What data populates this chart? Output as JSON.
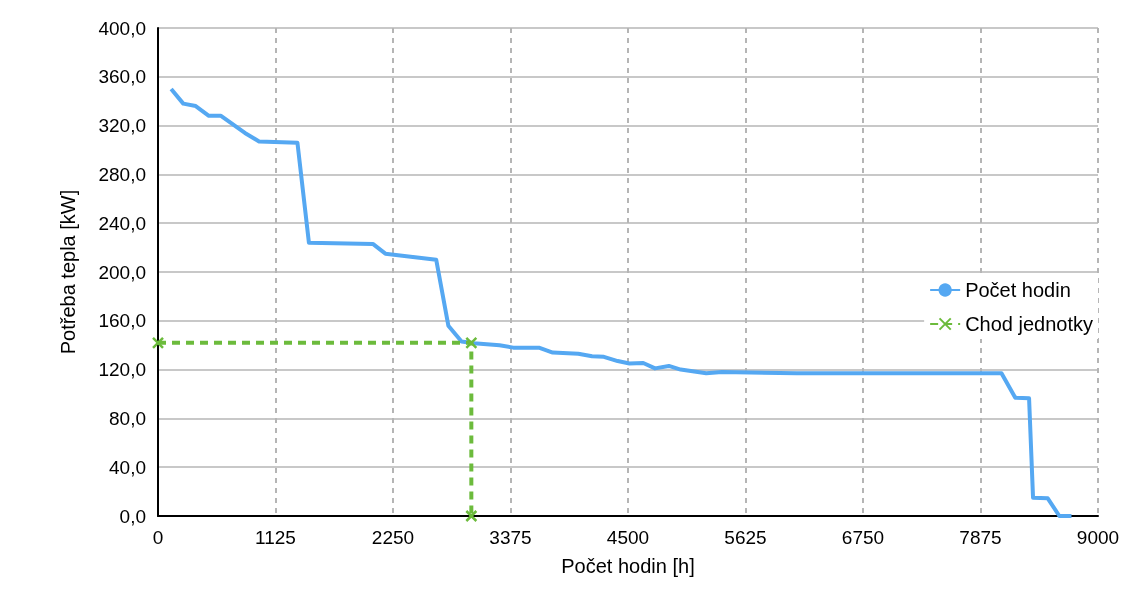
{
  "chart_data": {
    "type": "line",
    "xlabel": "Počet hodin [h]",
    "ylabel": "Potřeba tepla [kW]",
    "series": [
      {
        "name": "Počet hodin",
        "color": "#55a8f2",
        "marker": "none",
        "line_style": "solid",
        "x": [
          126,
          242,
          361,
          487,
          603,
          832,
          968,
          1335,
          1445,
          2057,
          2177,
          2664,
          2780,
          2906,
          3025,
          3270,
          3402,
          3647,
          3779,
          4024,
          4156,
          4269,
          4401,
          4514,
          4646,
          4759,
          4891,
          5004,
          5249,
          5400,
          6116,
          8076,
          8208,
          8340,
          8378,
          8519,
          8630,
          8746
        ],
        "values": [
          350,
          338,
          336,
          328,
          328,
          314,
          307,
          306,
          224,
          223,
          215,
          210,
          156,
          143,
          141.6,
          140,
          138,
          138,
          134,
          133,
          131,
          130.5,
          127,
          125,
          125.4,
          121,
          123,
          120,
          117,
          118,
          117,
          117,
          97,
          96.5,
          15,
          14.5,
          0,
          0
        ]
      },
      {
        "name": "Chod jednotky",
        "color": "#6cbb3c",
        "marker": "cross",
        "line_style": "dashed",
        "x": [
          0,
          3000,
          3000
        ],
        "values": [
          142,
          142,
          0
        ]
      }
    ],
    "xlim": [
      0,
      9000
    ],
    "xticks": [
      0,
      1125,
      2250,
      3375,
      4500,
      5625,
      6750,
      7875,
      9000
    ],
    "ylim": [
      0,
      400
    ],
    "yticks": [
      {
        "value": 0,
        "label": "0,0"
      },
      {
        "value": 40,
        "label": "40,0"
      },
      {
        "value": 80,
        "label": "80,0"
      },
      {
        "value": 120,
        "label": "120,0"
      },
      {
        "value": 160,
        "label": "160,0"
      },
      {
        "value": 200,
        "label": "200,0"
      },
      {
        "value": 240,
        "label": "240,0"
      },
      {
        "value": 280,
        "label": "280,0"
      },
      {
        "value": 320,
        "label": "320,0"
      },
      {
        "value": 360,
        "label": "360,0"
      },
      {
        "value": 400,
        "label": "400,0"
      }
    ],
    "grid": true,
    "legend": "right"
  }
}
